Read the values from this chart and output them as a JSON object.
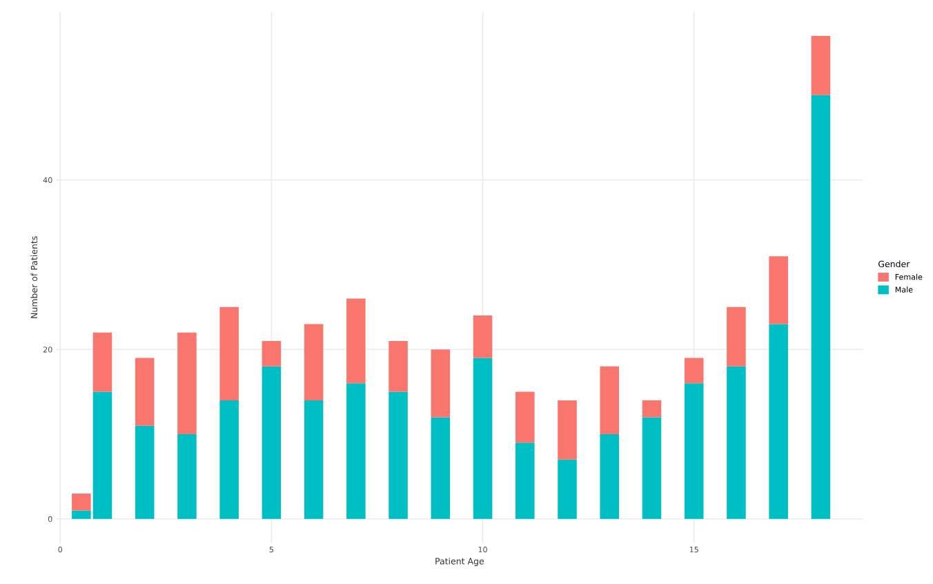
{
  "chart_data": {
    "type": "bar",
    "stacked": true,
    "xlabel": "Patient Age",
    "ylabel": "Number of Patients",
    "legend_title": "Gender",
    "legend": "right",
    "x": [
      0.5,
      1,
      2,
      3,
      4,
      5,
      6,
      7,
      8,
      9,
      10,
      11,
      12,
      13,
      14,
      15,
      16,
      17,
      18
    ],
    "series": [
      {
        "name": "Male",
        "color": "#00bfc4",
        "values": [
          1,
          15,
          11,
          10,
          14,
          18,
          14,
          16,
          15,
          12,
          19,
          9,
          7,
          10,
          12,
          16,
          18,
          23,
          50
        ]
      },
      {
        "name": "Female",
        "color": "#f8766d",
        "values": [
          2,
          7,
          8,
          12,
          11,
          3,
          9,
          10,
          6,
          8,
          5,
          6,
          7,
          8,
          2,
          3,
          7,
          8,
          7
        ]
      }
    ],
    "xlim": [
      -0.1,
      19.0
    ],
    "xticks": [
      0,
      5,
      10,
      15
    ],
    "ylim": [
      -2.85,
      59.85
    ],
    "yticks": [
      0,
      20,
      40
    ],
    "grid": true
  }
}
